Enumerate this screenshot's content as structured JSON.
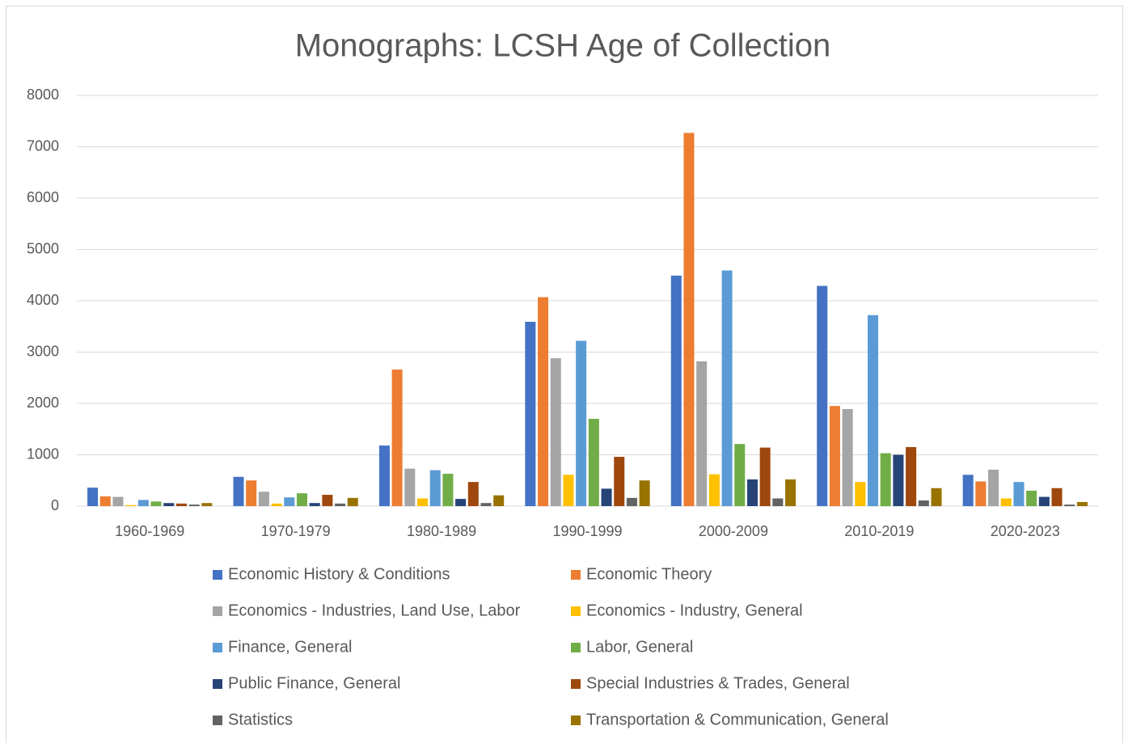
{
  "chart_data": {
    "type": "bar",
    "title": "Monographs: LCSH Age of Collection",
    "categories": [
      "1960-1969",
      "1970-1979",
      "1980-1989",
      "1990-1999",
      "2000-2009",
      "2010-2019",
      "2020-2023"
    ],
    "series": [
      {
        "name": "Economic History & Conditions",
        "color": "#4472c4",
        "values": [
          360,
          570,
          1180,
          3590,
          4490,
          4290,
          610
        ]
      },
      {
        "name": "Economic Theory",
        "color": "#ed7d31",
        "values": [
          190,
          500,
          2660,
          4070,
          7270,
          1950,
          480
        ]
      },
      {
        "name": "Economics - Industries, Land Use, Labor",
        "color": "#a5a5a5",
        "values": [
          180,
          280,
          730,
          2880,
          2820,
          1890,
          710
        ]
      },
      {
        "name": "Economics - Industry, General",
        "color": "#ffc000",
        "values": [
          20,
          50,
          150,
          610,
          620,
          470,
          150
        ]
      },
      {
        "name": "Finance, General",
        "color": "#5b9bd5",
        "values": [
          120,
          170,
          700,
          3220,
          4590,
          3720,
          470
        ]
      },
      {
        "name": "Labor, General",
        "color": "#70ad47",
        "values": [
          90,
          250,
          630,
          1700,
          1210,
          1030,
          300
        ]
      },
      {
        "name": "Public Finance, General",
        "color": "#264478",
        "values": [
          60,
          60,
          140,
          340,
          520,
          1000,
          180
        ]
      },
      {
        "name": "Special Industries & Trades, General",
        "color": "#9e480e",
        "values": [
          50,
          220,
          470,
          960,
          1140,
          1150,
          350
        ]
      },
      {
        "name": "Statistics",
        "color": "#636363",
        "values": [
          30,
          50,
          60,
          160,
          150,
          110,
          30
        ]
      },
      {
        "name": "Transportation & Communication, General",
        "color": "#997300",
        "values": [
          60,
          160,
          210,
          500,
          520,
          350,
          80
        ]
      }
    ],
    "ylim": [
      0,
      8000
    ],
    "yticks": [
      0,
      1000,
      2000,
      3000,
      4000,
      5000,
      6000,
      7000,
      8000
    ],
    "grid": true,
    "legend": "bottom"
  }
}
